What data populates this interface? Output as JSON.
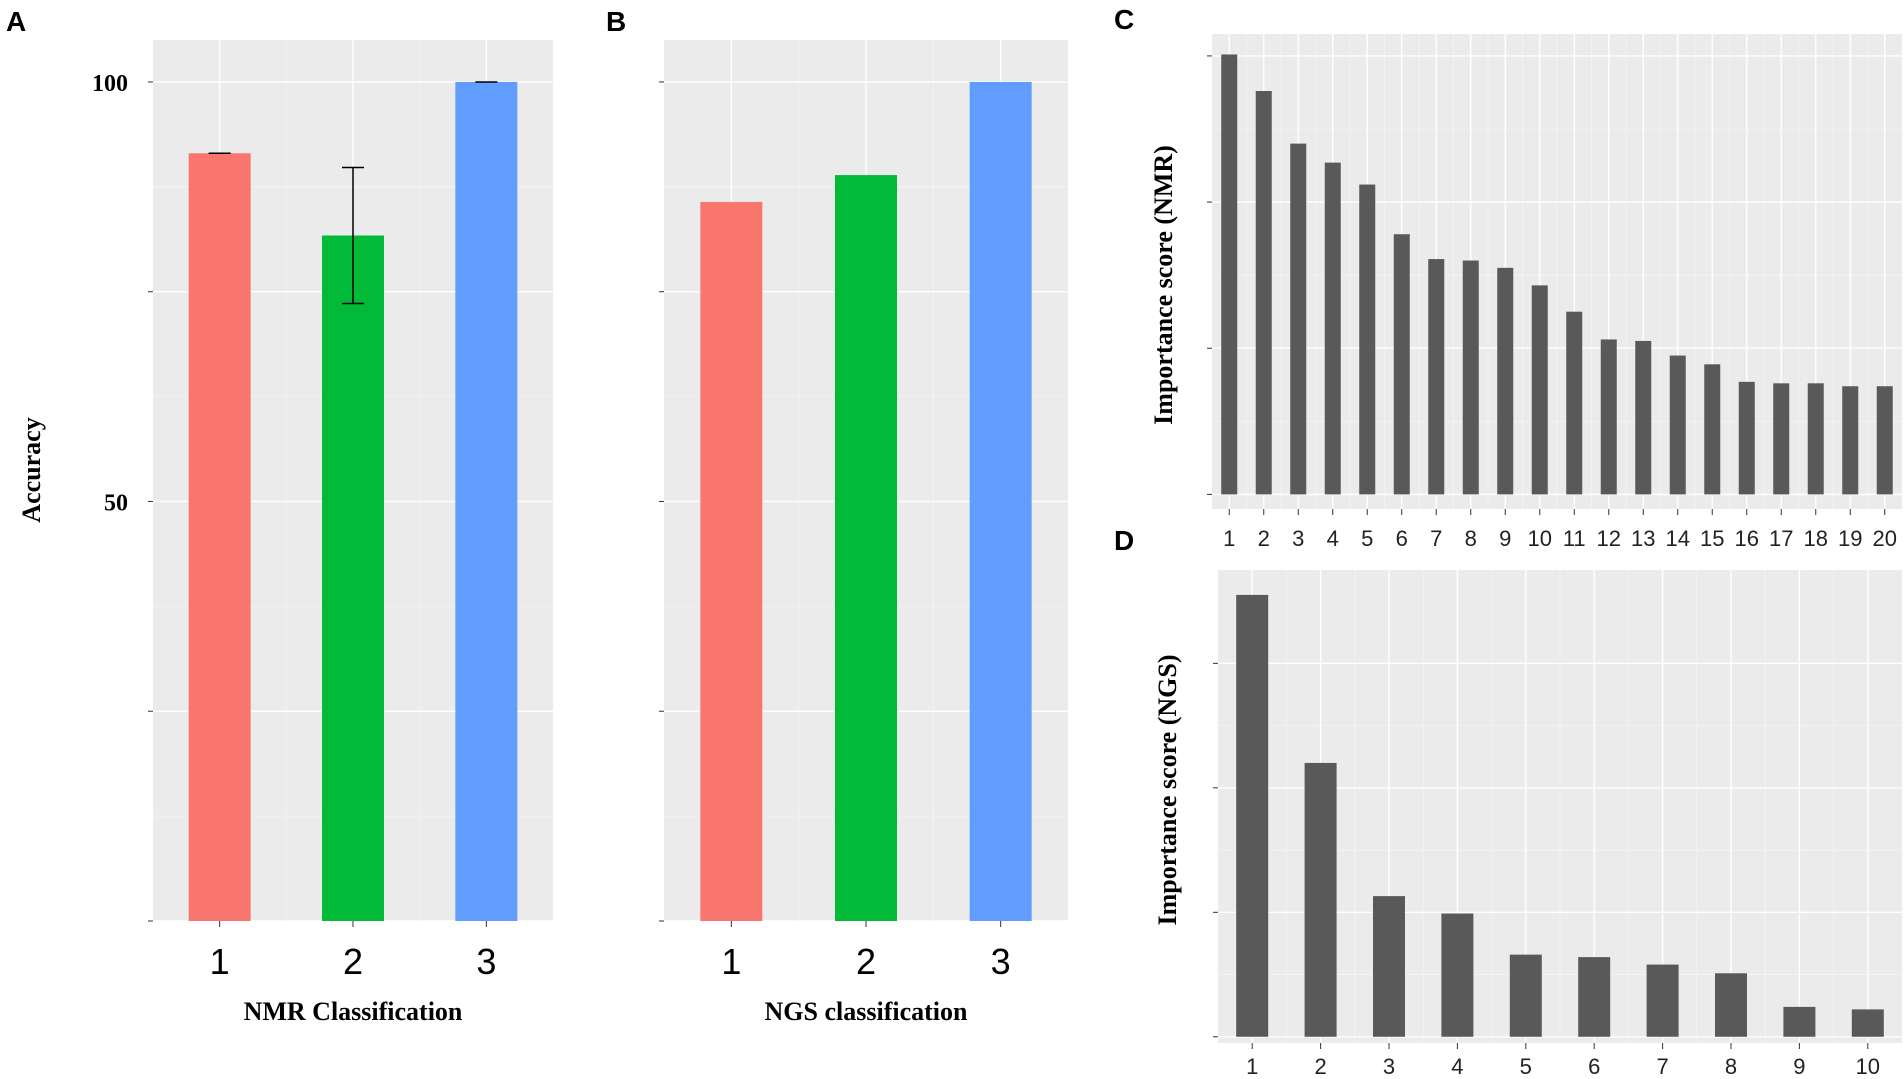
{
  "panels": {
    "A": "A",
    "B": "B",
    "C": "C",
    "D": "D"
  },
  "colors": {
    "class1": "#f8766d",
    "class2": "#00ba38",
    "class3": "#619cff",
    "importance_bar": "#595959",
    "panel_bg": "#ebebeb"
  },
  "chart_data": [
    {
      "id": "A",
      "type": "bar",
      "title": "",
      "xlabel": "NMR Classification",
      "ylabel": "Accuracy",
      "categories": [
        "1",
        "2",
        "3"
      ],
      "values": [
        91.5,
        81.7,
        100
      ],
      "error": [
        0,
        8.1,
        0
      ],
      "ylim": [
        0,
        105
      ],
      "yticks": [
        0,
        25,
        50,
        75,
        100
      ],
      "ytick_labels": [
        "",
        "",
        "50",
        "",
        "100"
      ],
      "grid": true
    },
    {
      "id": "B",
      "type": "bar",
      "title": "",
      "xlabel": "NGS classification",
      "ylabel": "",
      "categories": [
        "1",
        "2",
        "3"
      ],
      "values": [
        85.7,
        88.9,
        100
      ],
      "ylim": [
        0,
        105
      ],
      "yticks": [
        0,
        25,
        50,
        75,
        100
      ],
      "ytick_labels": [
        "",
        "",
        "",
        "",
        ""
      ],
      "grid": true
    },
    {
      "id": "C",
      "type": "bar",
      "title": "",
      "xlabel": "",
      "ylabel": "Importance score (NMR)",
      "categories": [
        "1",
        "2",
        "3",
        "4",
        "5",
        "6",
        "7",
        "8",
        "9",
        "10",
        "11",
        "12",
        "13",
        "14",
        "15",
        "16",
        "17",
        "18",
        "19",
        "20"
      ],
      "values": [
        30.1,
        27.6,
        24.0,
        22.7,
        21.2,
        17.8,
        16.1,
        16.0,
        15.5,
        14.3,
        12.5,
        10.6,
        10.5,
        9.5,
        8.9,
        7.7,
        7.6,
        7.6,
        7.4,
        7.4
      ],
      "ylim": [
        -1,
        31.5
      ],
      "yticks": [
        0,
        10,
        20,
        30
      ],
      "ytick_labels": [
        "",
        "",
        "",
        ""
      ],
      "grid": true
    },
    {
      "id": "D",
      "type": "bar",
      "title": "",
      "xlabel": "",
      "ylabel": "Importance score (NGS)",
      "categories": [
        "1",
        "2",
        "3",
        "4",
        "5",
        "6",
        "7",
        "8",
        "9",
        "10"
      ],
      "values": [
        35.5,
        22.0,
        11.3,
        9.9,
        6.6,
        6.4,
        5.8,
        5.1,
        2.4,
        2.2
      ],
      "ylim": [
        -0.5,
        37.5
      ],
      "yticks": [
        0,
        10,
        20,
        30
      ],
      "ytick_labels": [
        "",
        "",
        "",
        ""
      ],
      "grid": true
    }
  ]
}
